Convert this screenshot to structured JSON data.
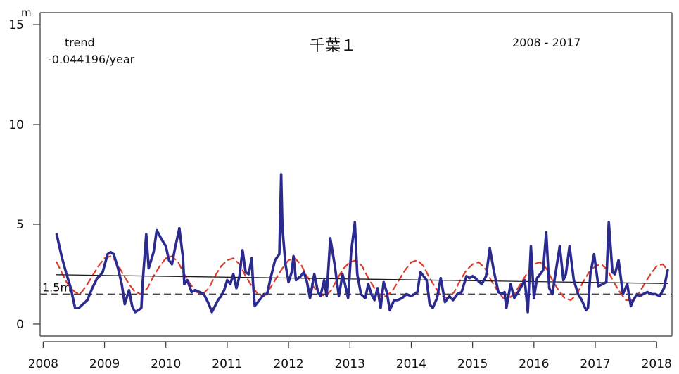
{
  "chart_data": {
    "type": "line",
    "title": "千葉１",
    "period_label": "2008 - 2017",
    "trend_label": "trend",
    "trend_value": "-0.044196/year",
    "ylabel": "m",
    "reference_label": "1.5m",
    "reference_value": 1.5,
    "ylim": [
      -0.6,
      15.6
    ],
    "xlim": [
      2007.95,
      2018.25
    ],
    "yticks": [
      0,
      5,
      10,
      15
    ],
    "xticks": [
      2008,
      2009,
      2010,
      2011,
      2012,
      2013,
      2014,
      2015,
      2016,
      2017,
      2018
    ],
    "ytick_labels": [
      "0",
      "5",
      "10",
      "15"
    ],
    "xtick_labels": [
      "2008",
      "2009",
      "2010",
      "2011",
      "2012",
      "2013",
      "2014",
      "2015",
      "2016",
      "2017",
      "2018"
    ],
    "colors": {
      "observed": "#2b2b8f",
      "seasonal": "#e03a2a",
      "trend": "#1a1a1a",
      "reference": "#444444"
    },
    "series": [
      {
        "role": "observed",
        "x": [
          2008.22,
          2008.3,
          2008.38,
          2008.45,
          2008.52,
          2008.58,
          2008.65,
          2008.72,
          2008.8,
          2008.88,
          2008.92,
          2008.97,
          2009.05,
          2009.1,
          2009.15,
          2009.22,
          2009.28,
          2009.33,
          2009.4,
          2009.45,
          2009.5,
          2009.55,
          2009.6,
          2009.62,
          2009.68,
          2009.72,
          2009.8,
          2009.85,
          2009.92,
          2010.0,
          2010.05,
          2010.1,
          2010.15,
          2010.22,
          2010.28,
          2010.3,
          2010.35,
          2010.42,
          2010.48,
          2010.55,
          2010.62,
          2010.7,
          2010.75,
          2010.85,
          2010.9,
          2010.95,
          2011.0,
          2011.05,
          2011.1,
          2011.15,
          2011.2,
          2011.25,
          2011.3,
          2011.35,
          2011.4,
          2011.42,
          2011.45,
          2011.55,
          2011.6,
          2011.65,
          2011.7,
          2011.78,
          2011.85,
          2011.88,
          2011.9,
          2011.95,
          2012.0,
          2012.05,
          2012.08,
          2012.12,
          2012.2,
          2012.25,
          2012.3,
          2012.35,
          2012.42,
          2012.48,
          2012.52,
          2012.58,
          2012.62,
          2012.68,
          2012.75,
          2012.82,
          2012.88,
          2012.92,
          2012.97,
          2013.02,
          2013.08,
          2013.12,
          2013.18,
          2013.25,
          2013.3,
          2013.35,
          2013.4,
          2013.45,
          2013.5,
          2013.55,
          2013.6,
          2013.65,
          2013.72,
          2013.78,
          2013.85,
          2013.92,
          2014.0,
          2014.05,
          2014.1,
          2014.15,
          2014.2,
          2014.25,
          2014.3,
          2014.35,
          2014.42,
          2014.48,
          2014.55,
          2014.62,
          2014.68,
          2014.75,
          2014.82,
          2014.9,
          2014.95,
          2015.0,
          2015.05,
          2015.08,
          2015.15,
          2015.22,
          2015.28,
          2015.35,
          2015.42,
          2015.48,
          2015.52,
          2015.55,
          2015.62,
          2015.68,
          2015.72,
          2015.78,
          2015.85,
          2015.9,
          2015.95,
          2016.0,
          2016.05,
          2016.1,
          2016.15,
          2016.2,
          2016.25,
          2016.3,
          2016.35,
          2016.42,
          2016.48,
          2016.52,
          2016.58,
          2016.65,
          2016.72,
          2016.78,
          2016.85,
          2016.88,
          2016.92,
          2016.98,
          2017.05,
          2017.12,
          2017.18,
          2017.22,
          2017.28,
          2017.32,
          2017.38,
          2017.45,
          2017.52,
          2017.58,
          2017.62,
          2017.68,
          2017.72,
          2017.78,
          2017.85,
          2017.92,
          2017.98,
          2018.05,
          2018.12,
          2018.18
        ],
        "y": [
          4.5,
          3.4,
          2.5,
          1.8,
          0.8,
          0.8,
          1.0,
          1.2,
          1.8,
          2.3,
          2.4,
          2.6,
          3.5,
          3.6,
          3.5,
          2.8,
          2.0,
          1.0,
          1.7,
          0.9,
          0.6,
          0.7,
          0.8,
          2.0,
          4.5,
          2.8,
          3.6,
          4.7,
          4.3,
          3.9,
          3.2,
          3.0,
          3.8,
          4.8,
          3.3,
          2.0,
          2.2,
          1.6,
          1.7,
          1.6,
          1.5,
          1.0,
          0.6,
          1.2,
          1.4,
          1.7,
          2.2,
          2.0,
          2.5,
          1.8,
          2.4,
          3.7,
          2.6,
          2.5,
          3.3,
          2.1,
          0.9,
          1.3,
          1.5,
          1.5,
          2.2,
          3.2,
          3.5,
          7.5,
          4.8,
          3.0,
          2.1,
          2.6,
          3.4,
          2.2,
          2.4,
          2.6,
          2.1,
          1.3,
          2.5,
          1.6,
          1.4,
          2.2,
          1.4,
          4.3,
          3.0,
          1.4,
          2.5,
          2.0,
          1.3,
          3.6,
          5.1,
          2.5,
          1.5,
          1.3,
          2.0,
          1.5,
          1.2,
          1.8,
          0.8,
          2.1,
          1.6,
          0.7,
          1.2,
          1.2,
          1.3,
          1.5,
          1.4,
          1.5,
          1.6,
          2.6,
          2.4,
          2.2,
          1.0,
          0.8,
          1.3,
          2.3,
          1.1,
          1.4,
          1.2,
          1.5,
          1.6,
          2.4,
          2.3,
          2.4,
          2.3,
          2.2,
          2.0,
          2.4,
          3.8,
          2.6,
          1.6,
          1.5,
          1.6,
          0.8,
          2.0,
          1.3,
          1.5,
          1.8,
          2.2,
          0.6,
          3.9,
          1.3,
          2.3,
          2.5,
          2.7,
          4.6,
          1.8,
          1.5,
          2.5,
          3.9,
          2.2,
          2.5,
          3.9,
          2.2,
          1.5,
          1.2,
          0.7,
          0.8,
          2.5,
          3.5,
          1.9,
          2.0,
          2.1,
          5.1,
          2.6,
          2.5,
          3.2,
          1.5,
          2.0,
          0.9,
          1.2,
          1.5,
          1.4,
          1.5,
          1.6,
          1.5,
          1.5,
          1.4,
          1.8,
          2.7
        ]
      },
      {
        "role": "seasonal",
        "x": [
          2008.22,
          2008.3,
          2008.38,
          2008.45,
          2008.52,
          2008.6,
          2008.7,
          2008.8,
          2008.9,
          2009.0,
          2009.1,
          2009.2,
          2009.3,
          2009.4,
          2009.5,
          2009.6,
          2009.7,
          2009.8,
          2009.9,
          2010.0,
          2010.1,
          2010.2,
          2010.3,
          2010.4,
          2010.5,
          2010.6,
          2010.7,
          2010.8,
          2010.9,
          2011.0,
          2011.1,
          2011.2,
          2011.3,
          2011.4,
          2011.5,
          2011.6,
          2011.7,
          2011.8,
          2011.9,
          2012.0,
          2012.1,
          2012.2,
          2012.3,
          2012.4,
          2012.5,
          2012.6,
          2012.7,
          2012.8,
          2012.9,
          2013.0,
          2013.1,
          2013.2,
          2013.3,
          2013.4,
          2013.5,
          2013.6,
          2013.7,
          2013.8,
          2013.9,
          2014.0,
          2014.1,
          2014.2,
          2014.3,
          2014.4,
          2014.5,
          2014.6,
          2014.7,
          2014.8,
          2014.9,
          2015.0,
          2015.1,
          2015.2,
          2015.3,
          2015.4,
          2015.5,
          2015.6,
          2015.7,
          2015.8,
          2015.9,
          2016.0,
          2016.1,
          2016.2,
          2016.3,
          2016.4,
          2016.5,
          2016.6,
          2016.7,
          2016.8,
          2016.9,
          2017.0,
          2017.1,
          2017.2,
          2017.3,
          2017.4,
          2017.5,
          2017.6,
          2017.7,
          2017.8,
          2017.9,
          2018.0,
          2018.1,
          2018.18
        ],
        "y": [
          3.1,
          2.6,
          2.1,
          1.8,
          1.6,
          1.5,
          1.9,
          2.4,
          2.9,
          3.3,
          3.4,
          3.1,
          2.5,
          2.0,
          1.6,
          1.5,
          1.8,
          2.4,
          2.9,
          3.3,
          3.4,
          3.1,
          2.5,
          2.0,
          1.6,
          1.5,
          1.8,
          2.4,
          2.9,
          3.2,
          3.3,
          3.0,
          2.4,
          1.9,
          1.5,
          1.4,
          1.8,
          2.3,
          2.8,
          3.2,
          3.3,
          3.0,
          2.4,
          1.9,
          1.5,
          1.4,
          1.7,
          2.3,
          2.8,
          3.1,
          3.2,
          2.9,
          2.3,
          1.8,
          1.4,
          1.4,
          1.7,
          2.2,
          2.7,
          3.1,
          3.2,
          2.9,
          2.3,
          1.8,
          1.4,
          1.3,
          1.6,
          2.2,
          2.7,
          3.0,
          3.1,
          2.8,
          2.2,
          1.7,
          1.3,
          1.3,
          1.6,
          2.1,
          2.6,
          3.0,
          3.1,
          2.8,
          2.2,
          1.7,
          1.3,
          1.2,
          1.5,
          2.1,
          2.6,
          2.9,
          3.0,
          2.7,
          2.1,
          1.6,
          1.2,
          1.2,
          1.5,
          2.0,
          2.5,
          2.9,
          3.0,
          2.7
        ]
      },
      {
        "role": "trend",
        "x": [
          2008.22,
          2018.18
        ],
        "y": [
          2.47,
          2.03
        ]
      }
    ]
  }
}
